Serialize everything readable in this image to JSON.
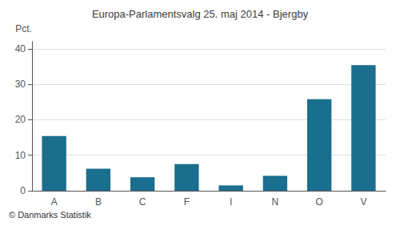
{
  "chart_data": {
    "type": "bar",
    "title": "Europa-Parlamentsvalg 25. maj 2014 - Bjergby",
    "categories": [
      "A",
      "B",
      "C",
      "F",
      "I",
      "N",
      "O",
      "V"
    ],
    "values": [
      15.4,
      6.2,
      3.8,
      7.5,
      1.5,
      4.2,
      25.8,
      35.4
    ],
    "color": "#1a6e8e",
    "ylabel": "Pct.",
    "ylim": [
      0,
      42
    ],
    "yticks": [
      0,
      10,
      20,
      30,
      40
    ],
    "grid": true,
    "footer": "© Danmarks Statistik"
  }
}
